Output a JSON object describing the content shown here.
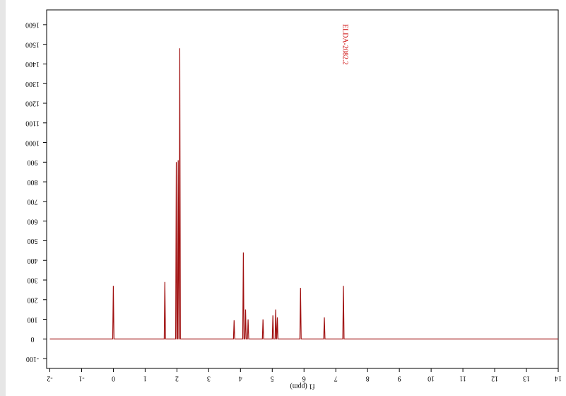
{
  "chart_data": {
    "type": "line",
    "title": "ELDA-2082.2",
    "x_label": "f1 (ppm)",
    "x": [
      -2,
      -0.02,
      0,
      0.02,
      1.6,
      1.62,
      1.64,
      1.96,
      1.98,
      2.0,
      2.02,
      2.04,
      2.06,
      2.07,
      2.09,
      2.11,
      3.78,
      3.8,
      3.82,
      4.07,
      4.09,
      4.11,
      4.14,
      4.16,
      4.18,
      4.22,
      4.24,
      4.26,
      4.69,
      4.71,
      4.73,
      5.0,
      5.02,
      5.04,
      5.09,
      5.11,
      5.13,
      5.14,
      5.16,
      5.18,
      5.87,
      5.89,
      5.91,
      6.62,
      6.64,
      6.66,
      7.22,
      7.24,
      7.26,
      14
    ],
    "series": [
      {
        "color": "#a01010",
        "values": [
          0,
          0,
          270,
          0,
          0,
          290,
          0,
          0,
          900,
          0,
          0,
          910,
          0,
          0,
          1480,
          0,
          0,
          95,
          0,
          0,
          440,
          0,
          0,
          150,
          0,
          0,
          100,
          0,
          0,
          100,
          0,
          0,
          120,
          0,
          0,
          150,
          0,
          0,
          110,
          0,
          0,
          260,
          0,
          0,
          110,
          0,
          0,
          270,
          0,
          0
        ]
      }
    ],
    "xlim": [
      -2.1,
      14
    ],
    "ylim": [
      -150,
      1650
    ],
    "xticks": [
      -2,
      -1,
      0,
      1,
      2,
      3,
      4,
      5,
      6,
      7,
      8,
      9,
      10,
      11,
      12,
      13,
      14
    ],
    "yticks": [
      -100,
      0,
      100,
      200,
      300,
      400,
      500,
      600,
      700,
      800,
      900,
      1000,
      1100,
      1200,
      1300,
      1400,
      1500,
      1600
    ]
  }
}
